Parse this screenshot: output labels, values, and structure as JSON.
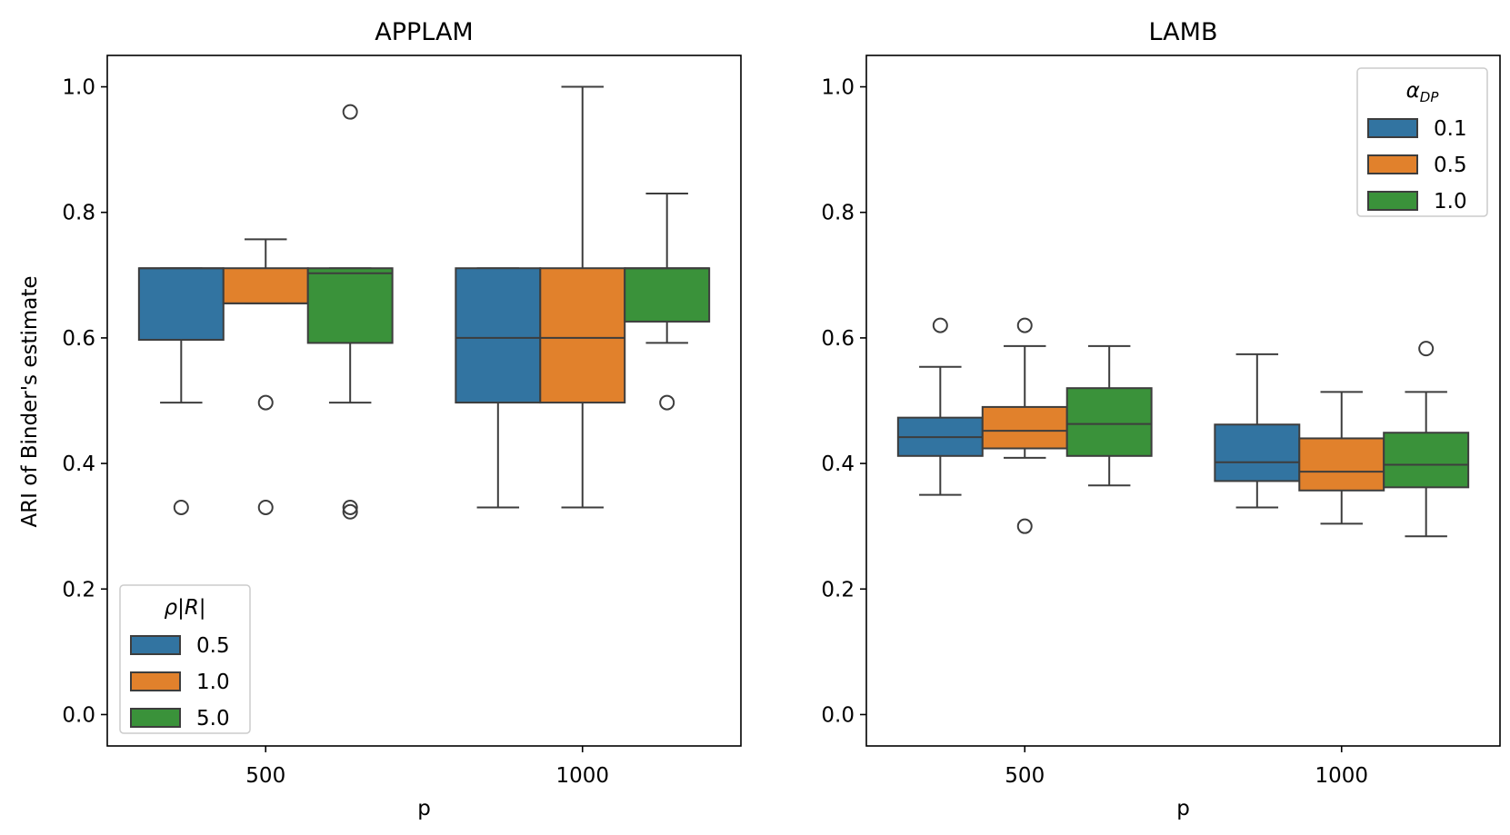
{
  "figure": {
    "ylabel": "ARI of Binder's estimate"
  },
  "chart_data": [
    {
      "type": "box",
      "title": "APPLAM",
      "xlabel": "p",
      "ylabel": "ARI of Binder's estimate",
      "categories": [
        "500",
        "1000"
      ],
      "ylim": [
        -0.05,
        1.05
      ],
      "yticks": [
        "0.0",
        "0.2",
        "0.4",
        "0.6",
        "0.8",
        "1.0"
      ],
      "legend": {
        "title_text": "ρ|R|",
        "title_html": "<tspan font-style='italic'>ρ</tspan>|<tspan font-style='italic'>R</tspan>|",
        "placement": "lower-left",
        "entries": [
          "0.5",
          "1.0",
          "5.0"
        ]
      },
      "series": [
        {
          "name": "0.5",
          "color": "#3274a1",
          "boxes": [
            {
              "whislo": 0.497,
              "q1": 0.597,
              "med": 0.711,
              "q3": 0.711,
              "whishi": 0.711,
              "fliers": [
                0.33
              ]
            },
            {
              "whislo": 0.33,
              "q1": 0.497,
              "med": 0.6,
              "q3": 0.711,
              "whishi": 0.711,
              "fliers": []
            }
          ]
        },
        {
          "name": "1.0",
          "color": "#e1812c",
          "boxes": [
            {
              "whislo": 0.655,
              "q1": 0.655,
              "med": 0.655,
              "q3": 0.711,
              "whishi": 0.757,
              "fliers": [
                0.497,
                0.33
              ]
            },
            {
              "whislo": 0.33,
              "q1": 0.497,
              "med": 0.6,
              "q3": 0.711,
              "whishi": 1.0,
              "fliers": []
            }
          ]
        },
        {
          "name": "5.0",
          "color": "#3a923a",
          "boxes": [
            {
              "whislo": 0.497,
              "q1": 0.592,
              "med": 0.703,
              "q3": 0.711,
              "whishi": 0.711,
              "fliers": [
                0.96,
                0.33,
                0.323
              ]
            },
            {
              "whislo": 0.592,
              "q1": 0.626,
              "med": 0.711,
              "q3": 0.711,
              "whishi": 0.83,
              "fliers": [
                0.497
              ]
            }
          ]
        }
      ]
    },
    {
      "type": "box",
      "title": "LAMB",
      "xlabel": "p",
      "ylabel": "",
      "categories": [
        "500",
        "1000"
      ],
      "ylim": [
        -0.05,
        1.05
      ],
      "yticks": [
        "0.0",
        "0.2",
        "0.4",
        "0.6",
        "0.8",
        "1.0"
      ],
      "legend": {
        "title_text": "αDP",
        "title_html": "<tspan font-style='italic'>α</tspan><tspan font-style='italic' font-size='15' dy='5'>DP</tspan>",
        "placement": "upper-right",
        "entries": [
          "0.1",
          "0.5",
          "1.0"
        ]
      },
      "series": [
        {
          "name": "0.1",
          "color": "#3274a1",
          "boxes": [
            {
              "whislo": 0.35,
              "q1": 0.412,
              "med": 0.442,
              "q3": 0.473,
              "whishi": 0.554,
              "fliers": [
                0.62
              ]
            },
            {
              "whislo": 0.33,
              "q1": 0.372,
              "med": 0.402,
              "q3": 0.462,
              "whishi": 0.574,
              "fliers": []
            }
          ]
        },
        {
          "name": "0.5",
          "color": "#e1812c",
          "boxes": [
            {
              "whislo": 0.409,
              "q1": 0.424,
              "med": 0.452,
              "q3": 0.49,
              "whishi": 0.587,
              "fliers": [
                0.62,
                0.3
              ]
            },
            {
              "whislo": 0.304,
              "q1": 0.357,
              "med": 0.387,
              "q3": 0.44,
              "whishi": 0.514,
              "fliers": []
            }
          ]
        },
        {
          "name": "1.0",
          "color": "#3a923a",
          "boxes": [
            {
              "whislo": 0.365,
              "q1": 0.412,
              "med": 0.463,
              "q3": 0.52,
              "whishi": 0.587,
              "fliers": []
            },
            {
              "whislo": 0.284,
              "q1": 0.362,
              "med": 0.398,
              "q3": 0.449,
              "whishi": 0.514,
              "fliers": [
                0.583
              ]
            }
          ]
        }
      ]
    }
  ]
}
